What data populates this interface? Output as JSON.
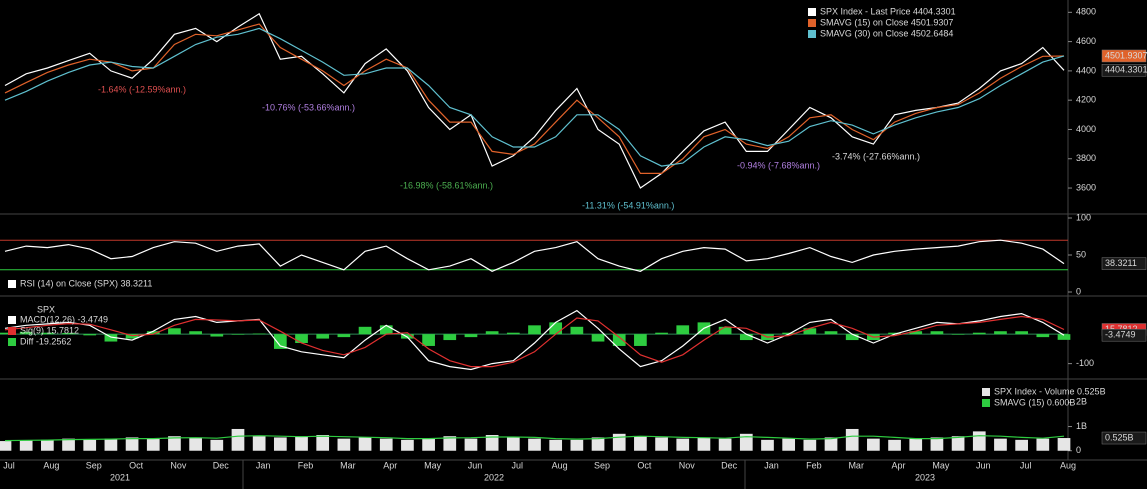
{
  "chart_data": [
    {
      "type": "line",
      "ylim": [
        3450,
        4850
      ],
      "yticks": [
        3600,
        3800,
        4000,
        4200,
        4400,
        4600,
        4800
      ],
      "series": [
        {
          "name": "SPX Index - Last Price 4404.3301",
          "color": "#ffffff",
          "values": [
            4300,
            4380,
            4420,
            4470,
            4520,
            4400,
            4350,
            4480,
            4650,
            4690,
            4600,
            4700,
            4790,
            4480,
            4500,
            4380,
            4250,
            4450,
            4550,
            4400,
            4150,
            4000,
            4100,
            3750,
            3820,
            3950,
            4130,
            4280,
            4000,
            3900,
            3600,
            3700,
            3850,
            3990,
            4050,
            3850,
            3850,
            4000,
            4150,
            4080,
            3950,
            3900,
            4100,
            4130,
            4150,
            4180,
            4280,
            4400,
            4450,
            4560,
            4404.3301
          ]
        },
        {
          "name": "SMAVG (15) on Close 4501.9307",
          "color": "#e0622a",
          "values": [
            4250,
            4320,
            4390,
            4440,
            4480,
            4460,
            4400,
            4420,
            4580,
            4650,
            4640,
            4680,
            4720,
            4560,
            4480,
            4400,
            4300,
            4400,
            4480,
            4420,
            4200,
            4050,
            4050,
            3850,
            3830,
            3900,
            4050,
            4200,
            4080,
            3950,
            3700,
            3700,
            3800,
            3950,
            4000,
            3900,
            3870,
            3950,
            4080,
            4100,
            4000,
            3930,
            4050,
            4110,
            4150,
            4170,
            4250,
            4350,
            4430,
            4500,
            4501.93
          ]
        },
        {
          "name": "SMAVG (30) on Close 4502.6484",
          "color": "#5fc0cf",
          "values": [
            4200,
            4260,
            4330,
            4390,
            4440,
            4460,
            4430,
            4420,
            4500,
            4580,
            4630,
            4650,
            4690,
            4620,
            4540,
            4460,
            4370,
            4380,
            4420,
            4420,
            4300,
            4150,
            4100,
            3950,
            3880,
            3880,
            3950,
            4100,
            4100,
            4000,
            3820,
            3750,
            3770,
            3880,
            3950,
            3930,
            3890,
            3920,
            4020,
            4060,
            4030,
            3970,
            4030,
            4080,
            4120,
            4150,
            4210,
            4300,
            4380,
            4460,
            4502.65
          ]
        }
      ],
      "markers": [
        {
          "value": 4501.9307,
          "color": "#e0622a"
        },
        {
          "value": 4404.3301,
          "color": "#1a1a1a"
        }
      ],
      "annotations": [
        "-1.64% (-12.59%ann.)",
        "-10.76% (-53.66%ann.)",
        "-16.98% (-58.61%ann.)",
        "-11.31% (-54.91%ann.)",
        "-0.94% (-7.68%ann.)",
        "-3.74% (-27.66%ann.)"
      ]
    },
    {
      "type": "line",
      "ylim": [
        0,
        100
      ],
      "yticks": [
        0,
        50,
        100
      ],
      "levels": [
        {
          "value": 70,
          "color": "#c0392b"
        },
        {
          "value": 30,
          "color": "#2ecc40"
        }
      ],
      "series": [
        {
          "name": "RSI (14) on Close (SPX) 38.3211",
          "color": "#ffffff",
          "values": [
            55,
            62,
            60,
            64,
            58,
            45,
            48,
            60,
            68,
            66,
            55,
            62,
            65,
            35,
            50,
            40,
            30,
            55,
            62,
            45,
            30,
            35,
            45,
            28,
            40,
            55,
            60,
            68,
            45,
            35,
            28,
            45,
            55,
            60,
            58,
            42,
            45,
            52,
            60,
            48,
            40,
            50,
            55,
            58,
            60,
            62,
            68,
            70,
            66,
            58,
            38.3211
          ]
        }
      ],
      "markers": [
        {
          "value": 38.3211,
          "color": "#1a1a1a"
        }
      ]
    },
    {
      "type": "line",
      "legend_title": "SPX",
      "ylim": [
        -142,
        116
      ],
      "yticks": [
        -100
      ],
      "levels": [
        {
          "value": 0,
          "color": "#2e8b57"
        }
      ],
      "series": [
        {
          "name": "MACD(12,26) -3.4749",
          "color": "#ffffff",
          "values": [
            20,
            30,
            35,
            40,
            30,
            -10,
            -20,
            10,
            50,
            60,
            40,
            45,
            50,
            -40,
            -60,
            -70,
            -80,
            -20,
            30,
            -10,
            -90,
            -110,
            -120,
            -100,
            -90,
            -30,
            40,
            80,
            20,
            -50,
            -110,
            -90,
            -40,
            20,
            50,
            0,
            -30,
            0,
            40,
            50,
            0,
            -30,
            0,
            20,
            40,
            35,
            45,
            60,
            70,
            40,
            -3.4749
          ]
        },
        {
          "name": "Sig(9) 15.7812",
          "color": "#e03030",
          "values": [
            15,
            22,
            30,
            36,
            34,
            15,
            -5,
            0,
            30,
            50,
            48,
            45,
            48,
            10,
            -30,
            -55,
            -70,
            -45,
            0,
            5,
            -50,
            -90,
            -110,
            -110,
            -95,
            -60,
            0,
            55,
            45,
            -10,
            -70,
            -95,
            -70,
            -20,
            25,
            20,
            -10,
            -5,
            20,
            40,
            20,
            -10,
            -5,
            10,
            30,
            35,
            40,
            50,
            60,
            50,
            15.7812
          ]
        },
        {
          "name": "Diff -19.2562",
          "color": "#2ecc40",
          "type": "bar",
          "values": [
            5,
            8,
            5,
            4,
            -4,
            -25,
            -15,
            10,
            20,
            10,
            -8,
            0,
            2,
            -50,
            -30,
            -15,
            -10,
            25,
            30,
            -15,
            -40,
            -20,
            -10,
            10,
            5,
            30,
            40,
            25,
            -25,
            -40,
            -40,
            5,
            30,
            40,
            25,
            -20,
            -20,
            5,
            20,
            10,
            -20,
            -20,
            5,
            10,
            10,
            0,
            5,
            10,
            10,
            -10,
            -19.2562
          ]
        }
      ],
      "markers": [
        {
          "value": 15.7812,
          "color": "#e03030"
        },
        {
          "value": -3.4749,
          "color": "#1a1a1a"
        }
      ]
    },
    {
      "type": "bar",
      "ylim": [
        -0.3,
        2.8
      ],
      "yticks": [
        0,
        {
          "value": 1,
          "label": "1B"
        },
        {
          "value": 2,
          "label": "2B"
        }
      ],
      "categories": [
        "Jul",
        null,
        "Aug",
        null,
        "Sep",
        null,
        "Oct",
        null,
        "Nov",
        null,
        "Dec",
        null,
        "Jan",
        null,
        "Feb",
        null,
        "Mar",
        null,
        "Apr",
        null,
        "May",
        null,
        "Jun",
        null,
        "Jul",
        null,
        "Aug",
        null,
        "Sep",
        null,
        "Oct",
        null,
        "Nov",
        null,
        "Dec",
        null,
        "Jan",
        null,
        "Feb",
        null,
        "Mar",
        null,
        "Apr",
        null,
        "May",
        null,
        "Jun",
        null,
        "Jul",
        null,
        "Aug"
      ],
      "year_labels": [
        "2021",
        "2022",
        "2023"
      ],
      "series": [
        {
          "name": "SPX Index - Volume 0.525B",
          "color": "#e6e6e6",
          "type": "bar",
          "values": [
            0.4,
            0.42,
            0.45,
            0.5,
            0.45,
            0.5,
            0.55,
            0.5,
            0.6,
            0.55,
            0.45,
            0.9,
            0.6,
            0.55,
            0.6,
            0.65,
            0.5,
            0.55,
            0.5,
            0.45,
            0.5,
            0.6,
            0.5,
            0.65,
            0.55,
            0.5,
            0.45,
            0.45,
            0.55,
            0.7,
            0.6,
            0.55,
            0.5,
            0.55,
            0.5,
            0.7,
            0.45,
            0.5,
            0.45,
            0.55,
            0.9,
            0.5,
            0.45,
            0.5,
            0.55,
            0.6,
            0.8,
            0.5,
            0.45,
            0.5,
            0.525
          ]
        },
        {
          "name": "SMAVG (15) 0.600B",
          "color": "#2ecc40",
          "values": [
            0.42,
            0.43,
            0.44,
            0.46,
            0.47,
            0.48,
            0.5,
            0.5,
            0.53,
            0.54,
            0.52,
            0.6,
            0.62,
            0.6,
            0.58,
            0.6,
            0.58,
            0.56,
            0.54,
            0.5,
            0.5,
            0.53,
            0.54,
            0.57,
            0.57,
            0.55,
            0.5,
            0.48,
            0.5,
            0.56,
            0.6,
            0.58,
            0.55,
            0.54,
            0.52,
            0.58,
            0.55,
            0.52,
            0.48,
            0.5,
            0.6,
            0.6,
            0.55,
            0.5,
            0.5,
            0.55,
            0.62,
            0.6,
            0.55,
            0.52,
            0.6
          ]
        }
      ],
      "markers": [
        {
          "value": {
            "value": 0.525,
            "label": "0.525B"
          },
          "color": "#1a1a1a"
        }
      ]
    }
  ]
}
